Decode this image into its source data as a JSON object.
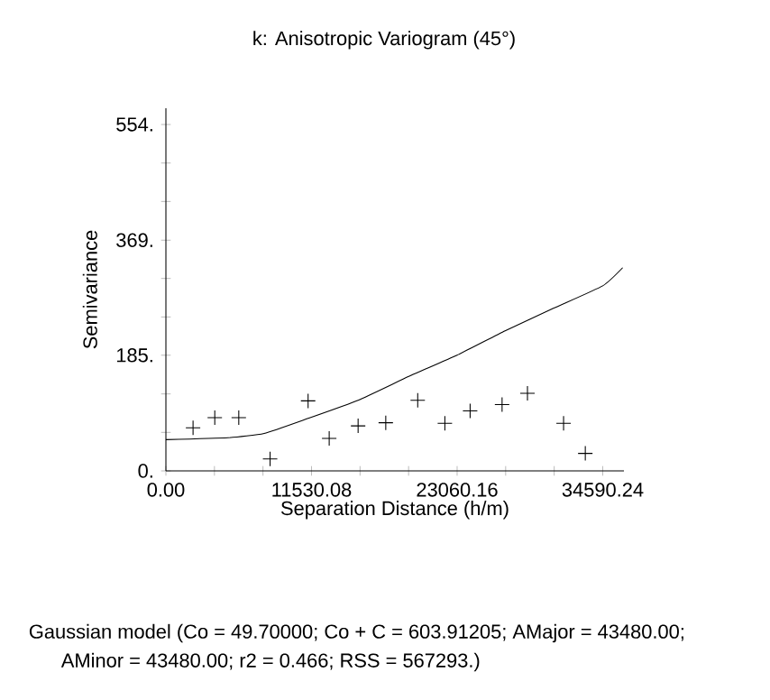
{
  "chart_data": {
    "type": "scatter",
    "title": "k: Anisotropic Variogram (45°)",
    "xlabel": "Separation Distance (h/m)",
    "ylabel": "Semivariance",
    "xlim": [
      0,
      36270
    ],
    "ylim": [
      0,
      580
    ],
    "xticks": [
      {
        "value": 0,
        "label": "0.00"
      },
      {
        "value": 3843.36,
        "label": null
      },
      {
        "value": 7686.72,
        "label": null
      },
      {
        "value": 11530.08,
        "label": "11530.08"
      },
      {
        "value": 15373.44,
        "label": null
      },
      {
        "value": 19216.8,
        "label": null
      },
      {
        "value": 23060.16,
        "label": "23060.16"
      },
      {
        "value": 26903.52,
        "label": null
      },
      {
        "value": 30746.88,
        "label": null
      },
      {
        "value": 34590.24,
        "label": "34590.24"
      }
    ],
    "yticks": [
      {
        "value": 0,
        "label": "0."
      },
      {
        "value": 61.6,
        "label": null
      },
      {
        "value": 123.1,
        "label": null
      },
      {
        "value": 185,
        "label": "185."
      },
      {
        "value": 246.2,
        "label": null
      },
      {
        "value": 307.8,
        "label": null
      },
      {
        "value": 369,
        "label": "369."
      },
      {
        "value": 430.9,
        "label": null
      },
      {
        "value": 492.4,
        "label": null
      },
      {
        "value": 554,
        "label": "554."
      }
    ],
    "series": [
      {
        "color": "#000000",
        "marker": "cross",
        "x": [
          2150,
          3870,
          5770,
          8250,
          11260,
          12930,
          15220,
          17410,
          19940,
          22090,
          24090,
          26620,
          28630,
          31490,
          33210
        ],
        "values": [
          69,
          85,
          85,
          19,
          112,
          52,
          72,
          77,
          113,
          76,
          96,
          106,
          124,
          76,
          28
        ]
      },
      {
        "type": "line",
        "color": "#000000",
        "marker": "none",
        "x": [
          0,
          4910,
          7780,
          11260,
          15220,
          19230,
          23050,
          26860,
          30680,
          34590,
          36170
        ],
        "values": [
          50,
          53,
          60,
          84,
          113,
          151,
          185,
          224,
          260,
          296,
          325
        ]
      }
    ],
    "annotations": [
      "Gaussian model (Co = 49.70000; Co + C = 603.91205; AMajor = 43480.00;",
      "AMinor = 43480.00; r2 = 0.466; RSS = 567293.)"
    ]
  }
}
